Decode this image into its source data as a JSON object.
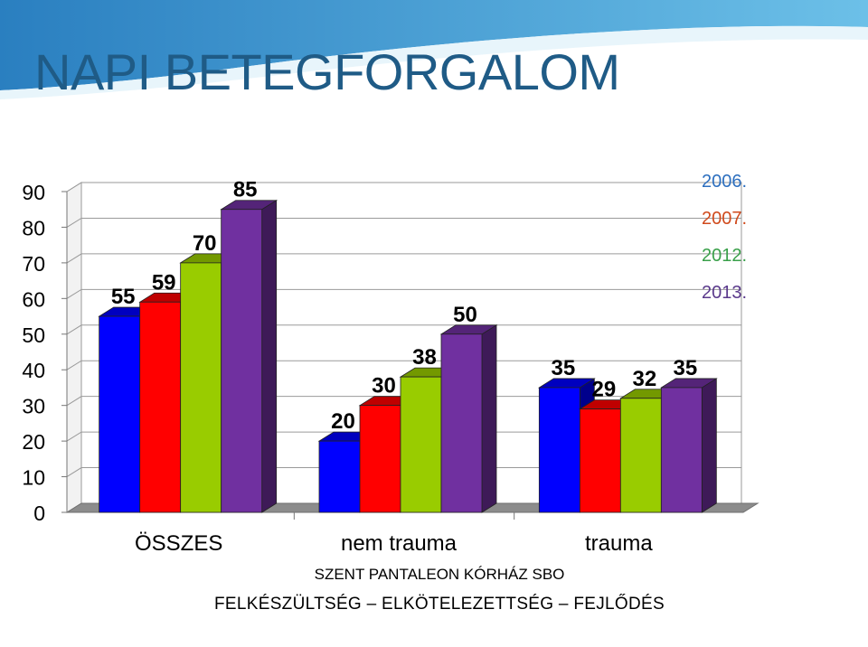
{
  "slide": {
    "title": "NAPI BETEGFORGALOM",
    "footer_line1": "SZENT PANTALEON KÓRHÁZ SBO",
    "footer_line2": "FELKÉSZÜLTSÉG – ELKÖTELEZETTSÉG – FEJLŐDÉS",
    "header_colors": [
      "#2a7fc0",
      "#6cc0e8",
      "#e8f5fb"
    ]
  },
  "chart_data": {
    "type": "bar",
    "style": "3d-clustered",
    "title": "",
    "xlabel": "",
    "ylabel": "",
    "categories": [
      "ÖSSZES",
      "nem trauma",
      "trauma"
    ],
    "series": [
      {
        "name": "2006.",
        "color": "#0000ff",
        "label_color": "#2d6fbf",
        "values": [
          55,
          20,
          35
        ]
      },
      {
        "name": "2007.",
        "color": "#ff0000",
        "label_color": "#d04a1c",
        "values": [
          59,
          30,
          29
        ]
      },
      {
        "name": "2012.",
        "color": "#99cc00",
        "label_color": "#3aa04a",
        "values": [
          70,
          38,
          32
        ]
      },
      {
        "name": "2013.",
        "color": "#7030a0",
        "label_color": "#5b3a8c",
        "values": [
          85,
          50,
          35
        ]
      }
    ],
    "ylim": [
      0,
      90
    ],
    "yticks": [
      0,
      10,
      20,
      30,
      40,
      50,
      60,
      70,
      80,
      90
    ],
    "grid": true,
    "data_labels": true,
    "legend_position": "top-right"
  }
}
